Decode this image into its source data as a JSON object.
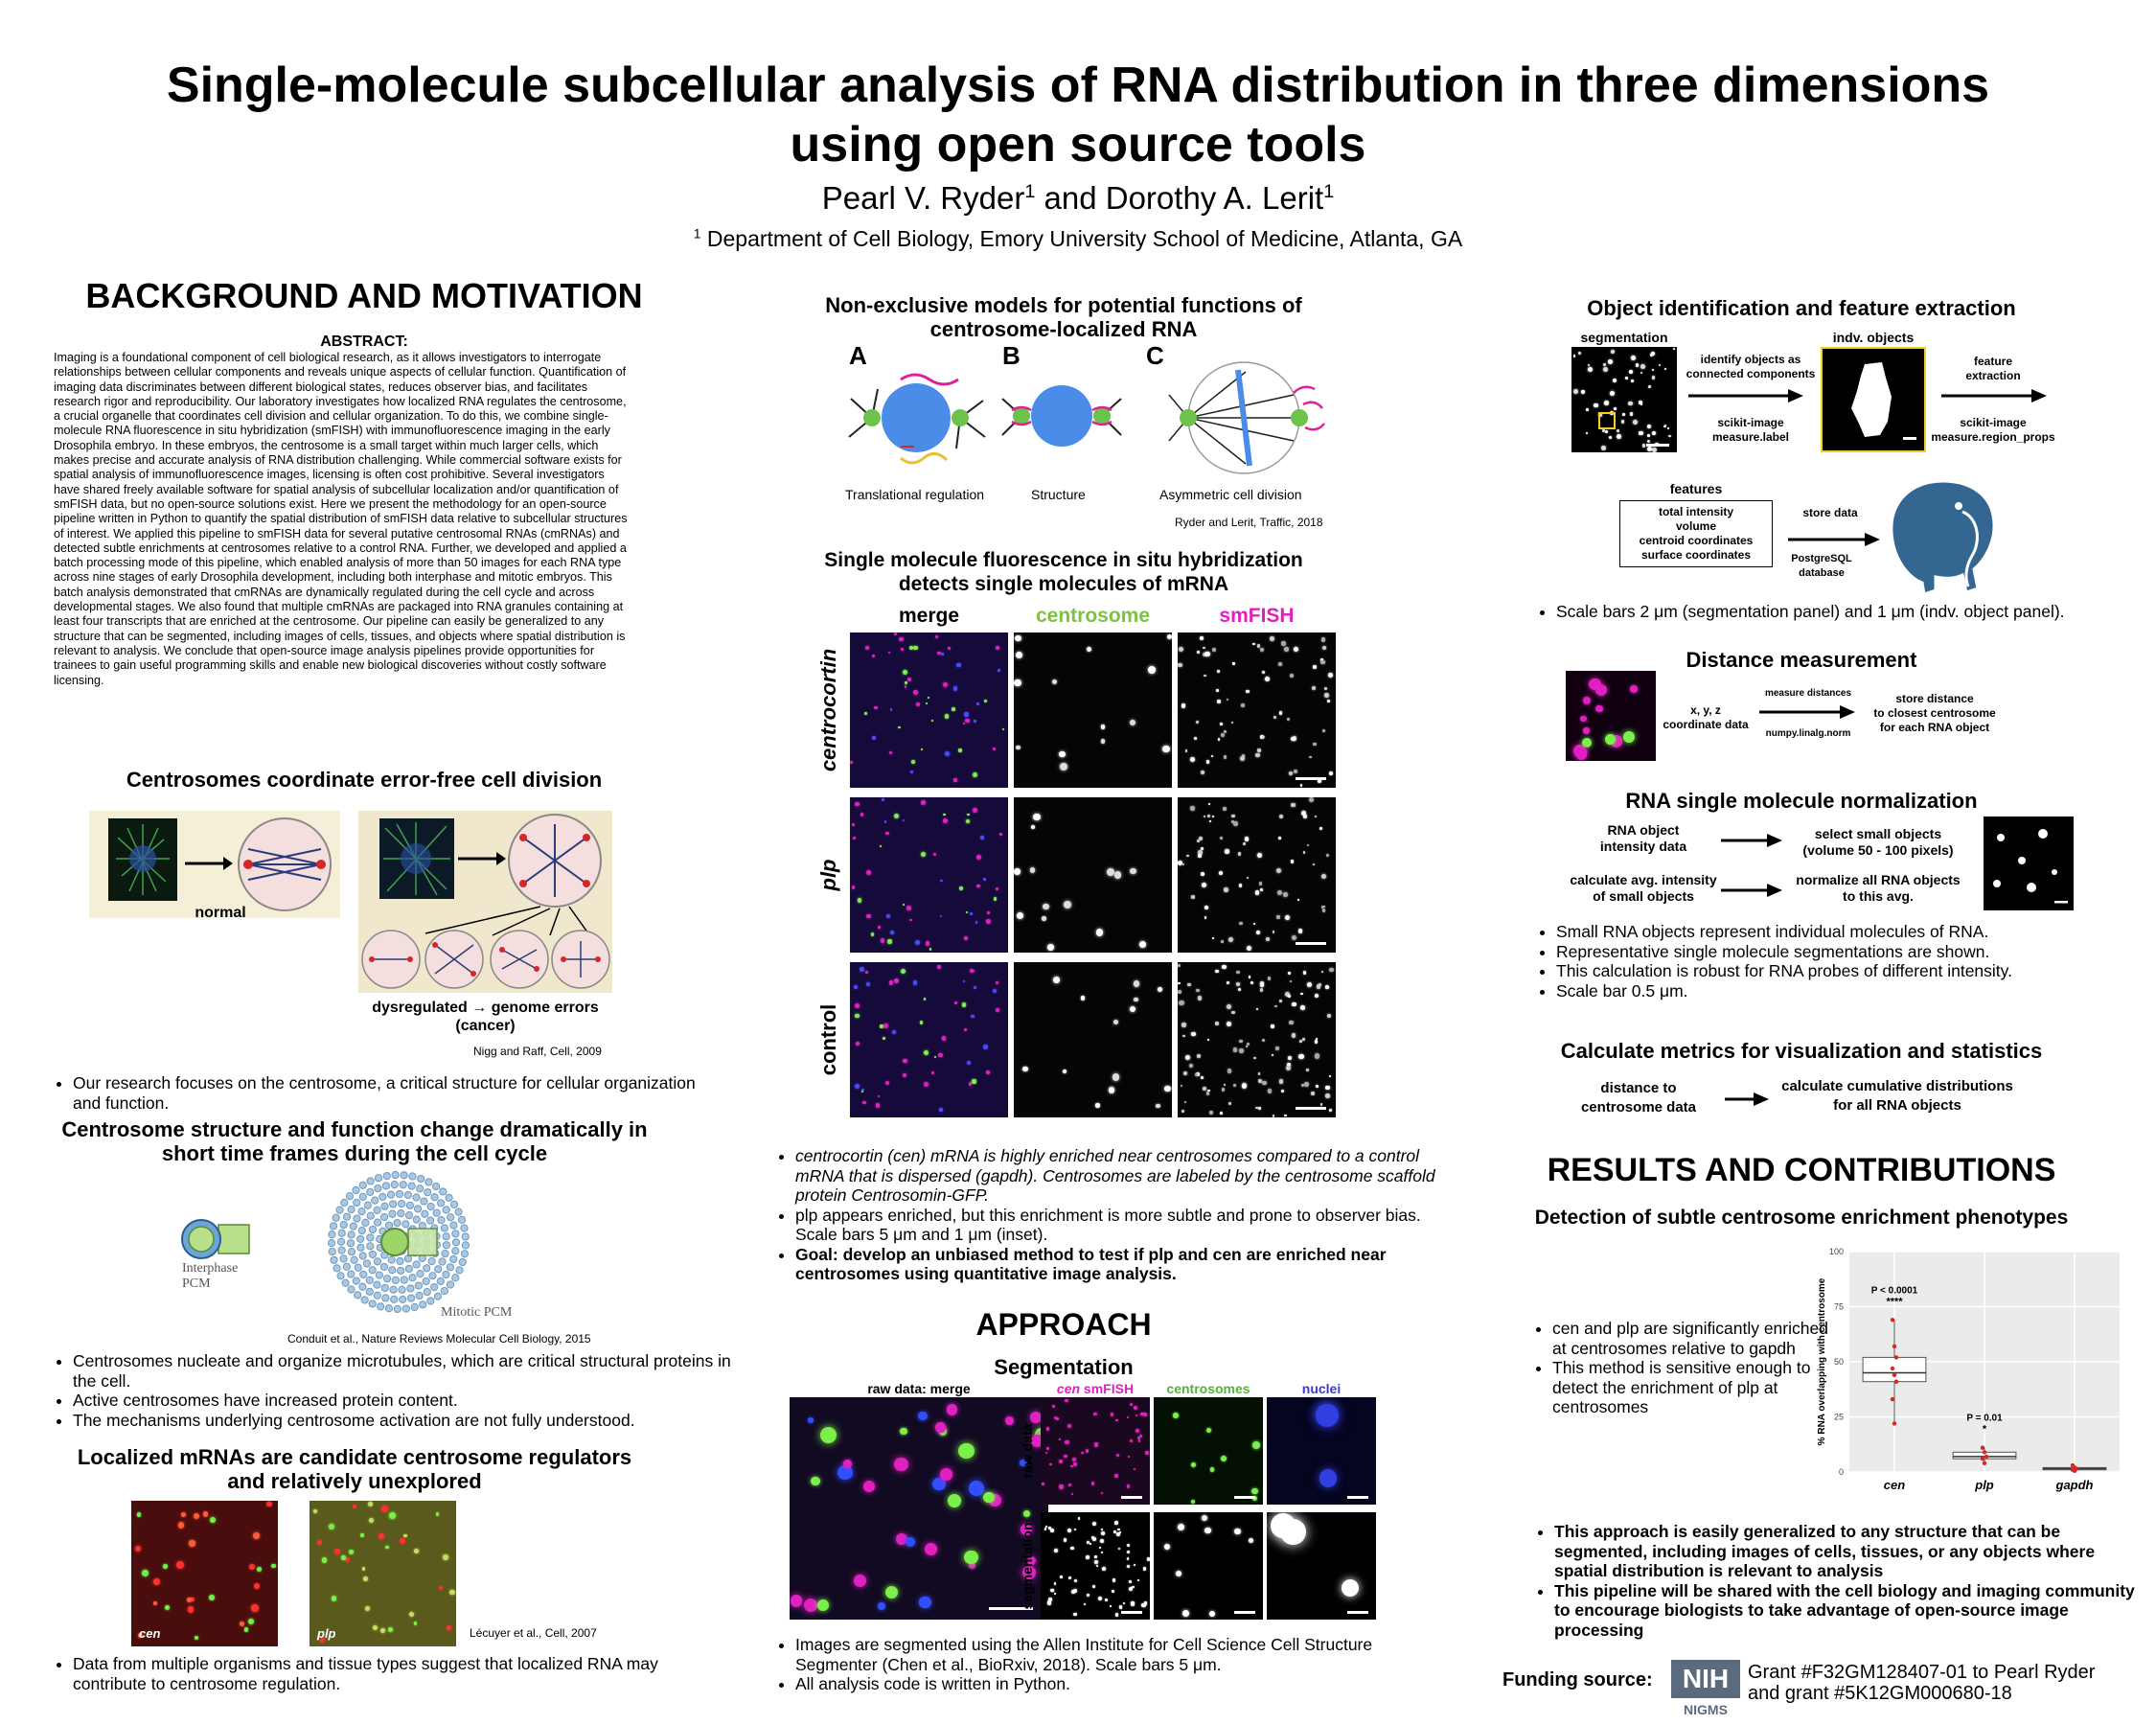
{
  "header": {
    "title_line1": "Single-molecule subcellular analysis of RNA distribution in three dimensions",
    "title_line2": "using open source tools",
    "author1": "Pearl V. Ryder",
    "author1_sup": "1",
    "author_and": " and ",
    "author2": "Dorothy A. Lerit",
    "author2_sup": "1",
    "affil_sup": "1",
    "affiliation": " Department of Cell Biology, Emory University School of Medicine, Atlanta, GA"
  },
  "background": {
    "heading": "BACKGROUND AND MOTIVATION",
    "abstract_label": "ABSTRACT:",
    "abstract": "Imaging is a foundational component of cell biological research, as it allows investigators to interrogate relationships between cellular components and reveals unique aspects of cellular function. Quantification of imaging data discriminates between different biological states, reduces observer bias, and facilitates research rigor and reproducibility. Our laboratory investigates how localized RNA regulates the centrosome, a crucial organelle that coordinates cell division and cellular organization. To do this, we combine single-molecule RNA fluorescence in situ hybridization (smFISH) with immunofluorescence imaging in the early Drosophila embryo. In these embryos, the centrosome is a small target within much larger cells, which makes precise and accurate analysis of RNA distribution challenging. While commercial software exists for spatial analysis of immunofluorescence images, licensing is often cost prohibitive. Several investigators have shared freely available software for spatial analysis of subcellular localization and/or quantification of smFISH data, but no open-source solutions exist. Here we present the methodology for an open-source pipeline written in Python to quantify the spatial distribution of smFISH data relative to subcellular structures of interest. We applied this pipeline to smFISH data for several putative centrosomal RNAs (cmRNAs) and detected subtle enrichments at centrosomes relative to a control RNA. Further, we developed and applied a batch processing mode of this pipeline, which enabled analysis of more than 50 images for each RNA type across nine stages of early Drosophila development, including both interphase and mitotic embryos. This batch analysis demonstrated that cmRNAs are dynamically regulated during the cell cycle and across developmental stages. We also found that multiple cmRNAs are packaged into RNA granules containing at least four transcripts that are enriched at the centrosome. Our pipeline can easily be generalized to any structure that can be segmented, including images of cells, tissues, and objects where spatial distribution is relevant to analysis. We conclude that open-source image analysis pipelines provide opportunities for trainees to gain useful programming skills and enable new biological discoveries without costly software licensing.",
    "centrosome_heading": "Centrosomes coordinate error-free cell division",
    "normal_label": "normal",
    "dysregulated_label": "dysregulated → genome errors",
    "cancer_label": "(cancer)",
    "cite1": "Nigg and Raff, Cell, 2009",
    "bullet1": "Our research focuses on the centrosome, a critical structure for cellular organization and function.",
    "structure_heading_line1": "Centrosome structure and function change dramatically in",
    "structure_heading_line2": "short time frames during the cell cycle",
    "interphase_label_1": "Interphase",
    "interphase_label_2": "PCM",
    "mitotic_label": "Mitotic PCM",
    "cite2": "Conduit et al., Nature Reviews Molecular Cell Biology, 2015",
    "bullets2": [
      "Centrosomes nucleate and organize microtubules, which are critical structural proteins in the cell.",
      "Active centrosomes have increased protein content.",
      "The mechanisms underlying centrosome activation are not fully understood."
    ],
    "mrna_heading_line1": "Localized mRNAs are candidate centrosome regulators",
    "mrna_heading_line2": "and relatively unexplored",
    "cen_label": "cen",
    "plp_label": "plp",
    "cite3": "Lécuyer et al., Cell, 2007",
    "bullet3": "Data from multiple organisms and tissue types suggest that localized RNA may contribute to centrosome regulation."
  },
  "middle": {
    "models_heading_line1": "Non-exclusive models for potential functions of",
    "models_heading_line2": "centrosome-localized RNA",
    "model_letters": [
      "A",
      "B",
      "C"
    ],
    "model_captions": [
      "Translational regulation",
      "Structure",
      "Asymmetric cell division"
    ],
    "cite4": "Ryder and Lerit, Traffic, 2018",
    "smfish_heading_line1": "Single molecule fluorescence in situ hybridization",
    "smfish_heading_line2": "detects single molecules of mRNA",
    "col_labels": [
      "merge",
      "centrosome",
      "smFISH"
    ],
    "row_labels": [
      "centrocortin",
      "plp",
      "control"
    ],
    "bullets": [
      "centrocortin (cen) mRNA is highly enriched near centrosomes compared to a control mRNA that is dispersed (gapdh). Centrosomes are labeled by the centrosome scaffold protein Centrosomin-GFP.",
      "plp appears enriched, but this enrichment is more subtle and prone to observer bias. Scale bars 5 μm and 1 μm (inset).",
      "Goal: develop an unbiased method to test if plp and cen are enriched near centrosomes using quantitative image analysis."
    ],
    "approach_heading": "APPROACH",
    "segmentation_heading": "Segmentation",
    "raw_merge_label": "raw data: merge",
    "seg_col_labels": [
      "cen smFISH",
      "centrosomes",
      "nuclei"
    ],
    "seg_row_labels": [
      "raw data",
      "segmentation"
    ],
    "seg_bullets": [
      "Images are segmented using the Allen Institute for Cell Science Cell Structure Segmenter (Chen et al., BioRxiv, 2018). Scale bars 5 μm.",
      "All analysis code is written in Python."
    ]
  },
  "right": {
    "obj_heading": "Object identification and feature extraction",
    "segmentation_label": "segmentation",
    "indv_label": "indv. objects",
    "identify_label_1": "identify objects as",
    "identify_label_2": "connected components",
    "scikit1_1": "scikit-image",
    "scikit1_2": "measure.label",
    "feature_label_1": "feature",
    "feature_label_2": "extraction",
    "scikit2_1": "scikit-image",
    "scikit2_2": "measure.region_props",
    "features_label": "features",
    "features_list": [
      "total intensity",
      "volume",
      "centroid coordinates",
      "surface coordinates"
    ],
    "store_data": "store data",
    "postgres_1": "PostgreSQL",
    "postgres_2": "database",
    "scale_bullet": "Scale bars 2 μm (segmentation panel) and 1 μm (indv. object panel).",
    "dist_heading": "Distance measurement",
    "xyz_1": "x, y, z",
    "xyz_2": "coordinate data",
    "measure_dist": "measure distances",
    "numpy": "numpy.linalg.norm",
    "store_dist_1": "store distance",
    "store_dist_2": "to closest centrosome",
    "store_dist_3": "for each RNA object",
    "norm_heading": "RNA single molecule normalization",
    "norm_a1": "RNA object",
    "norm_a2": "intensity data",
    "norm_b1": "select small objects",
    "norm_b2": "(volume 50 - 100 pixels)",
    "norm_c1": "calculate avg. intensity",
    "norm_c2": "of small objects",
    "norm_d1": "normalize all RNA objects",
    "norm_d2": "to this avg.",
    "norm_bullets": [
      "Small RNA objects represent individual molecules of RNA.",
      "Representative single molecule segmentations are shown.",
      "This calculation is robust for RNA probes of different intensity.",
      "Scale bar 0.5 μm."
    ],
    "metrics_heading": "Calculate metrics for visualization and statistics",
    "metrics_a1": "distance to",
    "metrics_a2": "centrosome data",
    "metrics_b1": "calculate cumulative distributions",
    "metrics_b2": "for all RNA objects",
    "results_heading": "RESULTS AND CONTRIBUTIONS",
    "detect_heading": "Detection of subtle centrosome enrichment phenotypes",
    "results_bullets": [
      "cen and plp are significantly enriched at centrosomes relative to gapdh",
      "This method is sensitive enough to detect the enrichment of plp at centrosomes"
    ],
    "final_bullets": [
      "This approach is easily generalized to any structure that can be segmented, including images of cells, tissues, or any objects where spatial distribution is relevant to analysis",
      "This pipeline will be shared with the cell biology and imaging community to encourage biologists to take advantage of open-source image processing"
    ],
    "funding_label": "Funding source:",
    "nih_logo": "NIH",
    "nigms_logo": "NIGMS",
    "grant_line1": "Grant #F32GM128407-01 to Pearl Ryder",
    "grant_line2": "and grant #5K12GM000680-18"
  },
  "chart_data": {
    "type": "box",
    "categories": [
      "cen",
      "plp",
      "gapdh"
    ],
    "ylabel": "% RNA overlapping with centrosome",
    "ylim": [
      0,
      100
    ],
    "yticks": [
      0,
      25,
      50,
      75,
      100
    ],
    "boxes": [
      {
        "name": "cen",
        "q1": 41,
        "median": 45,
        "q3": 52,
        "whisker_low": 22,
        "whisker_high": 69,
        "points": [
          69,
          57,
          52,
          47,
          44,
          41,
          33,
          22
        ]
      },
      {
        "name": "plp",
        "q1": 6,
        "median": 7,
        "q3": 9,
        "whisker_low": 4,
        "whisker_high": 11,
        "points": [
          11,
          9,
          7,
          6,
          4
        ]
      },
      {
        "name": "gapdh",
        "q1": 1,
        "median": 1.5,
        "q3": 2,
        "whisker_low": 0.5,
        "whisker_high": 3,
        "points": [
          3,
          2,
          1.5,
          1,
          0.5
        ]
      }
    ],
    "annotations": [
      {
        "category": "cen",
        "text": "P < 0.0001",
        "stars": "****"
      },
      {
        "category": "plp",
        "text": "P = 0.01",
        "stars": "*"
      }
    ],
    "background": "#ebebeb",
    "point_color": "#d62728"
  }
}
